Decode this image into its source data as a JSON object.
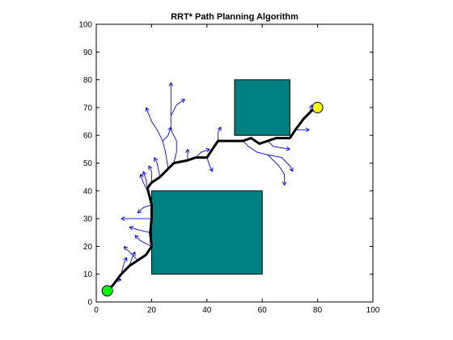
{
  "chart_data": {
    "type": "line",
    "title": "RRT* Path Planning Algorithm",
    "xlabel": "",
    "ylabel": "",
    "xlim": [
      0,
      100
    ],
    "ylim": [
      0,
      100
    ],
    "x_ticks": [
      "0",
      "20",
      "40",
      "60",
      "80",
      "100"
    ],
    "y_ticks": [
      "0",
      "10",
      "20",
      "30",
      "40",
      "50",
      "60",
      "70",
      "80",
      "90",
      "100"
    ],
    "grid": false,
    "colors": {
      "obstacle_fill": "#008080",
      "obstacle_edge": "#000000",
      "tree": "#0000ff",
      "path": "#000000",
      "start": "#00ff00",
      "goal": "#ffff00"
    },
    "obstacles": [
      {
        "x": [
          20,
          60
        ],
        "y": [
          10,
          40
        ]
      },
      {
        "x": [
          50,
          70
        ],
        "y": [
          60,
          80
        ]
      }
    ],
    "start": {
      "x": 4,
      "y": 4
    },
    "goal": {
      "x": 80,
      "y": 70
    },
    "path": [
      [
        4,
        4
      ],
      [
        6,
        6
      ],
      [
        9,
        10
      ],
      [
        12,
        13
      ],
      [
        15,
        15
      ],
      [
        18,
        17
      ],
      [
        20,
        20
      ],
      [
        19.5,
        25
      ],
      [
        20,
        30
      ],
      [
        20,
        35
      ],
      [
        19,
        39
      ],
      [
        18.5,
        41
      ],
      [
        20,
        43
      ],
      [
        23,
        45
      ],
      [
        26,
        48
      ],
      [
        28,
        50
      ],
      [
        33,
        51
      ],
      [
        36,
        52
      ],
      [
        40,
        52
      ],
      [
        42,
        55
      ],
      [
        44,
        58
      ],
      [
        50,
        58
      ],
      [
        53,
        58
      ],
      [
        56,
        59
      ],
      [
        59,
        57
      ],
      [
        62,
        58
      ],
      [
        65,
        59
      ],
      [
        70,
        59
      ],
      [
        72,
        62
      ],
      [
        75,
        66
      ],
      [
        78,
        69
      ],
      [
        80,
        70
      ]
    ],
    "tree_branches": [
      [
        [
          4,
          4
        ],
        [
          8,
          8
        ],
        [
          9,
          8
        ]
      ],
      [
        [
          9,
          10
        ],
        [
          10,
          14
        ],
        [
          11,
          16
        ]
      ],
      [
        [
          12,
          13
        ],
        [
          13,
          16
        ],
        [
          14,
          18
        ]
      ],
      [
        [
          15,
          15
        ],
        [
          12,
          18
        ],
        [
          10,
          20
        ]
      ],
      [
        [
          20,
          20
        ],
        [
          16,
          22
        ],
        [
          14,
          24
        ]
      ],
      [
        [
          19.5,
          25
        ],
        [
          15,
          26
        ],
        [
          12,
          27
        ]
      ],
      [
        [
          20,
          30
        ],
        [
          16,
          30
        ],
        [
          9,
          30
        ]
      ],
      [
        [
          20,
          35
        ],
        [
          17,
          34
        ],
        [
          15,
          32
        ]
      ],
      [
        [
          19,
          39
        ],
        [
          17,
          43
        ],
        [
          16,
          46
        ]
      ],
      [
        [
          18.5,
          41
        ],
        [
          18,
          44
        ],
        [
          17,
          47
        ]
      ],
      [
        [
          20,
          43
        ],
        [
          20,
          47
        ],
        [
          19,
          49
        ]
      ],
      [
        [
          23,
          45
        ],
        [
          22,
          50
        ],
        [
          21,
          52
        ]
      ],
      [
        [
          26,
          48
        ],
        [
          25,
          54
        ],
        [
          24,
          58
        ],
        [
          22,
          62
        ],
        [
          20,
          65
        ],
        [
          18,
          70
        ]
      ],
      [
        [
          28,
          50
        ],
        [
          29,
          54
        ],
        [
          29,
          58
        ],
        [
          27,
          62
        ],
        [
          27,
          67
        ],
        [
          27,
          79
        ]
      ],
      [
        [
          24,
          58
        ],
        [
          26,
          60
        ],
        [
          27,
          63
        ]
      ],
      [
        [
          27,
          67
        ],
        [
          29,
          71
        ],
        [
          32,
          73
        ]
      ],
      [
        [
          33,
          51
        ],
        [
          33,
          54
        ],
        [
          33,
          55
        ]
      ],
      [
        [
          40,
          52
        ],
        [
          41,
          49
        ],
        [
          42,
          47
        ]
      ],
      [
        [
          36,
          52
        ],
        [
          38,
          54
        ],
        [
          41,
          55
        ]
      ],
      [
        [
          44,
          58
        ],
        [
          44,
          61
        ],
        [
          45,
          63
        ]
      ],
      [
        [
          53,
          58
        ],
        [
          55,
          56
        ],
        [
          58,
          54
        ],
        [
          62,
          53
        ],
        [
          67,
          52
        ],
        [
          70,
          49
        ],
        [
          71,
          47
        ]
      ],
      [
        [
          62,
          53
        ],
        [
          66,
          49
        ],
        [
          68,
          46
        ],
        [
          68,
          42
        ]
      ],
      [
        [
          62,
          58
        ],
        [
          64,
          56
        ],
        [
          70,
          55
        ]
      ],
      [
        [
          72,
          62
        ],
        [
          75,
          62
        ],
        [
          77,
          62
        ]
      ],
      [
        [
          75,
          66
        ],
        [
          77,
          68
        ],
        [
          78,
          71
        ]
      ]
    ]
  }
}
